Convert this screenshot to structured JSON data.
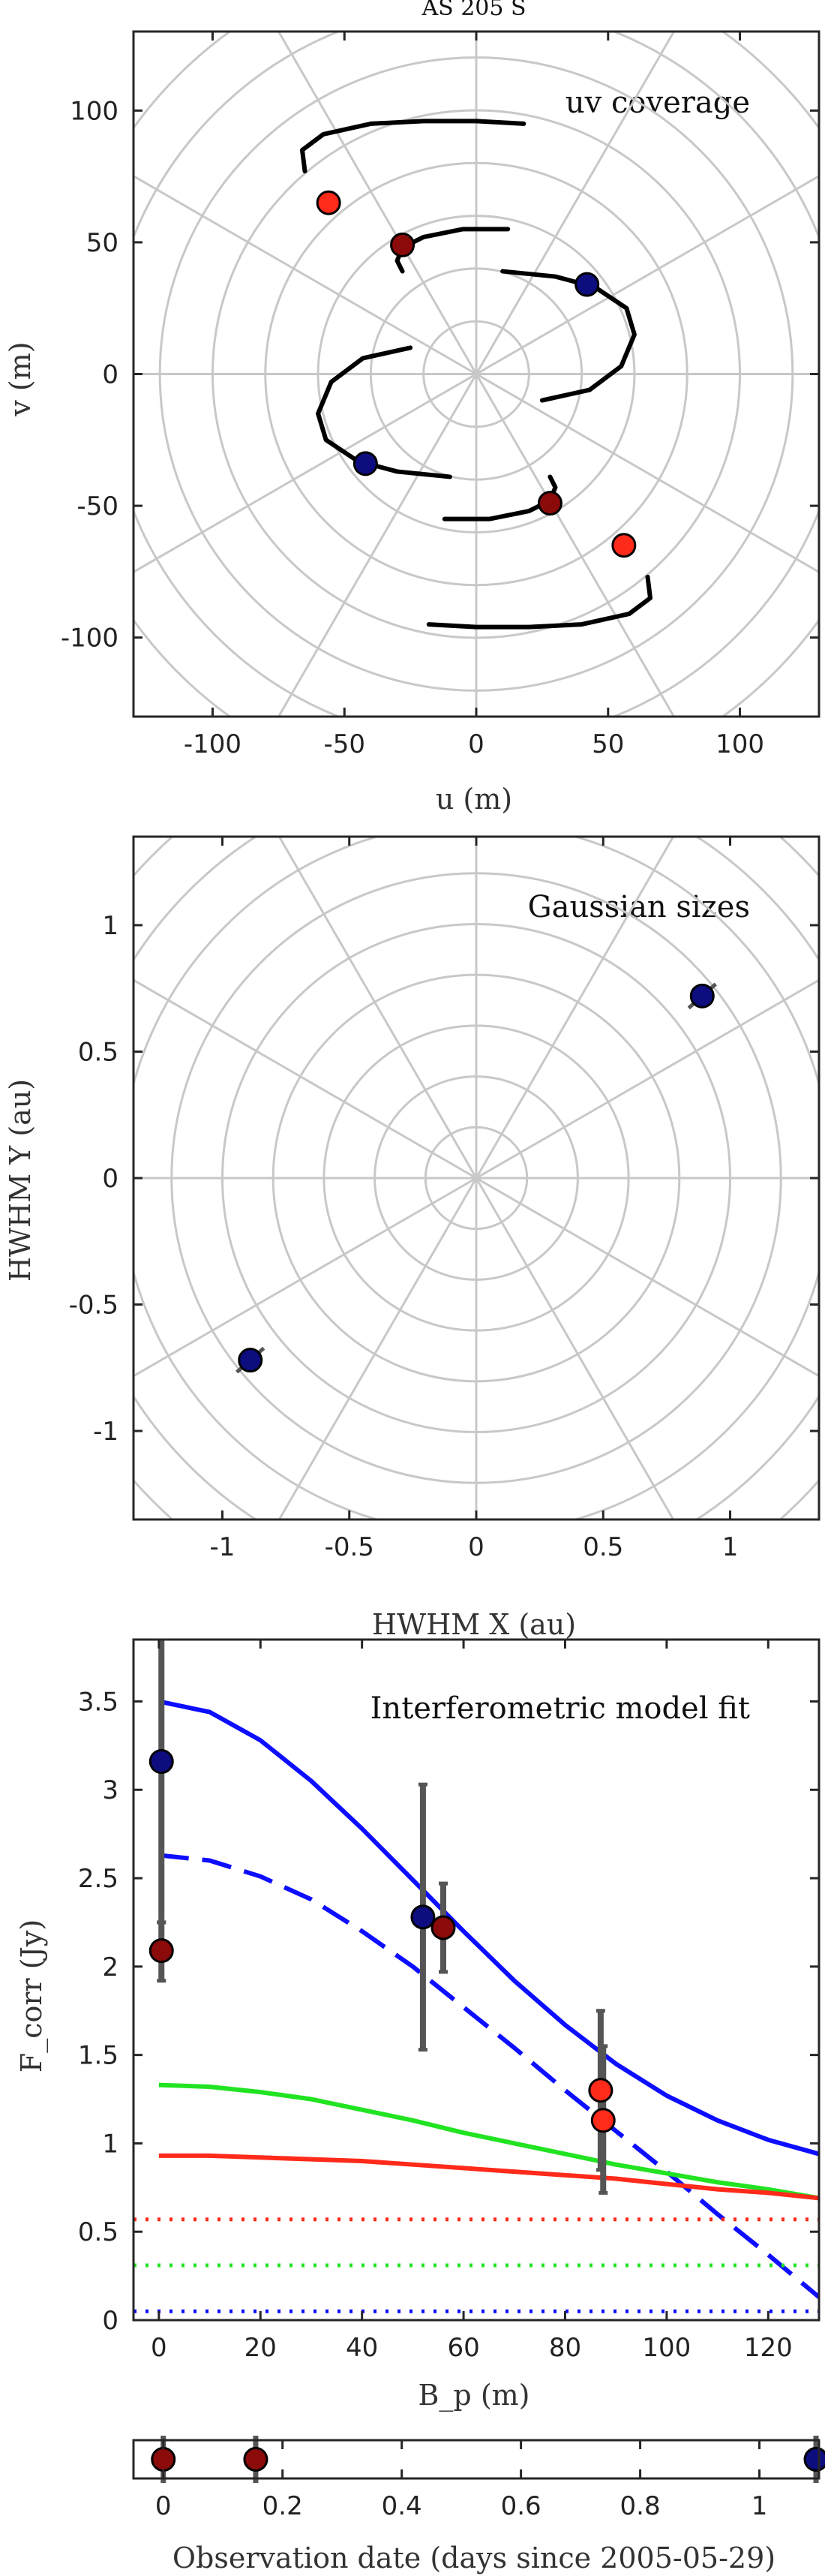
{
  "figure_title": "AS 205 S",
  "colors": {
    "dark_red": "#8b0a0a",
    "red": "#ff2a1a",
    "navy": "#0d0d80",
    "blue": "#0d0dff",
    "green": "#22e322",
    "track": "#000000",
    "grid": "#c8c8c8",
    "errorbar": "#555555"
  },
  "chart_data": [
    {
      "type": "scatter",
      "title": "uv coverage",
      "xlabel": "u (m)",
      "ylabel": "v (m)",
      "xlim": [
        -130,
        130
      ],
      "ylim": [
        -130,
        130
      ],
      "xticks": [
        -100,
        -50,
        0,
        50,
        100
      ],
      "yticks": [
        -100,
        -50,
        0,
        50,
        100
      ],
      "grid": "polar",
      "polar_radii": [
        20,
        40,
        60,
        80,
        100,
        120,
        140,
        160
      ],
      "polar_spoke_step_deg": 30,
      "tracks": [
        {
          "points": [
            [
              -65,
              77
            ],
            [
              -66,
              85
            ],
            [
              -58,
              91
            ],
            [
              -40,
              95
            ],
            [
              -20,
              96
            ],
            [
              0,
              96
            ],
            [
              18,
              95
            ]
          ]
        },
        {
          "points": [
            [
              65,
              -77
            ],
            [
              66,
              -85
            ],
            [
              58,
              -91
            ],
            [
              40,
              -95
            ],
            [
              20,
              -96
            ],
            [
              0,
              -96
            ],
            [
              -18,
              -95
            ]
          ]
        },
        {
          "points": [
            [
              -28,
              39
            ],
            [
              -30,
              43
            ],
            [
              -28,
              48
            ],
            [
              -20,
              52
            ],
            [
              -5,
              55
            ],
            [
              12,
              55
            ]
          ]
        },
        {
          "points": [
            [
              28,
              -39
            ],
            [
              30,
              -43
            ],
            [
              28,
              -48
            ],
            [
              20,
              -52
            ],
            [
              5,
              -55
            ],
            [
              -12,
              -55
            ]
          ]
        },
        {
          "points": [
            [
              10,
              39
            ],
            [
              30,
              37
            ],
            [
              45,
              33
            ],
            [
              57,
              25
            ],
            [
              60,
              15
            ],
            [
              55,
              3
            ],
            [
              43,
              -6
            ],
            [
              25,
              -10
            ]
          ]
        },
        {
          "points": [
            [
              -10,
              -39
            ],
            [
              -30,
              -37
            ],
            [
              -45,
              -33
            ],
            [
              -57,
              -25
            ],
            [
              -60,
              -15
            ],
            [
              -55,
              -3
            ],
            [
              -43,
              6
            ],
            [
              -25,
              10
            ]
          ]
        }
      ],
      "points": [
        {
          "u": -56,
          "v": 65,
          "color": "red"
        },
        {
          "u": 56,
          "v": -65,
          "color": "red"
        },
        {
          "u": -28,
          "v": 49,
          "color": "dark_red"
        },
        {
          "u": 28,
          "v": -49,
          "color": "dark_red"
        },
        {
          "u": 42,
          "v": 34,
          "color": "navy"
        },
        {
          "u": -42,
          "v": -34,
          "color": "navy"
        }
      ]
    },
    {
      "type": "scatter",
      "title": "Gaussian sizes",
      "xlabel": "HWHM X (au)",
      "ylabel": "HWHM Y (au)",
      "xlim": [
        -1.35,
        1.35
      ],
      "ylim": [
        -1.35,
        1.35
      ],
      "xticks": [
        -1,
        -0.5,
        0,
        0.5,
        1
      ],
      "yticks": [
        -1,
        -0.5,
        0,
        0.5,
        1
      ],
      "grid": "polar",
      "polar_radii": [
        0.2,
        0.4,
        0.6,
        0.8,
        1.0,
        1.2,
        1.4,
        1.6,
        1.8
      ],
      "polar_spoke_step_deg": 30,
      "points": [
        {
          "x": 0.89,
          "y": 0.72,
          "color": "navy"
        },
        {
          "x": -0.89,
          "y": -0.72,
          "color": "navy"
        }
      ]
    },
    {
      "type": "line",
      "title": "Interferometric model fit",
      "xlabel": "B_p (m)",
      "ylabel": "F_corr (Jy)",
      "xlim": [
        -5,
        130
      ],
      "ylim": [
        0,
        3.85
      ],
      "xticks": [
        0,
        20,
        40,
        60,
        80,
        100,
        120
      ],
      "yticks": [
        0,
        0.5,
        1,
        1.5,
        2,
        2.5,
        3,
        3.5
      ],
      "series": [
        {
          "color": "blue",
          "style": "solid",
          "x": [
            0,
            10,
            20,
            30,
            40,
            50,
            60,
            70,
            80,
            90,
            100,
            110,
            120,
            130
          ],
          "y": [
            3.5,
            3.44,
            3.28,
            3.05,
            2.78,
            2.49,
            2.2,
            1.92,
            1.67,
            1.45,
            1.27,
            1.13,
            1.02,
            0.94
          ]
        },
        {
          "color": "blue",
          "style": "dashed",
          "x": [
            0,
            10,
            20,
            30,
            40,
            50,
            60,
            70,
            80,
            90,
            100,
            110,
            120,
            130
          ],
          "y": [
            2.63,
            2.6,
            2.51,
            2.38,
            2.2,
            2.0,
            1.77,
            1.54,
            1.3,
            1.07,
            0.84,
            0.6,
            0.37,
            0.13
          ]
        },
        {
          "color": "green",
          "style": "solid",
          "x": [
            0,
            10,
            20,
            30,
            40,
            50,
            60,
            70,
            80,
            90,
            100,
            110,
            120,
            130
          ],
          "y": [
            1.33,
            1.32,
            1.29,
            1.25,
            1.19,
            1.13,
            1.06,
            1.0,
            0.94,
            0.88,
            0.83,
            0.78,
            0.74,
            0.69
          ]
        },
        {
          "color": "red",
          "style": "solid",
          "x": [
            0,
            10,
            20,
            30,
            40,
            50,
            60,
            70,
            80,
            90,
            100,
            110,
            120,
            130
          ],
          "y": [
            0.93,
            0.93,
            0.92,
            0.91,
            0.9,
            0.88,
            0.86,
            0.84,
            0.82,
            0.8,
            0.77,
            0.74,
            0.72,
            0.69
          ]
        },
        {
          "color": "red",
          "style": "dotted",
          "x": [
            -5,
            130
          ],
          "y": [
            0.57,
            0.57
          ]
        },
        {
          "color": "green",
          "style": "dotted",
          "x": [
            -5,
            130
          ],
          "y": [
            0.31,
            0.31
          ]
        },
        {
          "color": "blue",
          "style": "dotted",
          "x": [
            -5,
            130
          ],
          "y": [
            0.05,
            0.05
          ]
        }
      ],
      "measurements": [
        {
          "x": 0.5,
          "y": 3.16,
          "err_lo": 2.25,
          "err_hi": 4.1,
          "color": "navy"
        },
        {
          "x": 0.5,
          "y": 2.09,
          "err_lo": 1.92,
          "err_hi": 2.25,
          "color": "dark_red"
        },
        {
          "x": 52,
          "y": 2.28,
          "err_lo": 1.53,
          "err_hi": 3.03,
          "color": "navy"
        },
        {
          "x": 56,
          "y": 2.22,
          "err_lo": 1.97,
          "err_hi": 2.47,
          "color": "dark_red"
        },
        {
          "x": 87,
          "y": 1.3,
          "err_lo": 0.85,
          "err_hi": 1.75,
          "color": "red"
        },
        {
          "x": 87.5,
          "y": 1.13,
          "err_lo": 0.72,
          "err_hi": 1.55,
          "color": "red"
        }
      ]
    },
    {
      "type": "scatter",
      "xlabel": "Observation date (days since 2005-05-29)",
      "xlim": [
        -0.05,
        1.1
      ],
      "xticks": [
        0,
        0.2,
        0.4,
        0.6,
        0.8,
        1
      ],
      "points": [
        {
          "x": 0.0,
          "color": "dark_red"
        },
        {
          "x": 0.155,
          "color": "dark_red"
        },
        {
          "x": 1.095,
          "color": "navy"
        }
      ]
    }
  ]
}
